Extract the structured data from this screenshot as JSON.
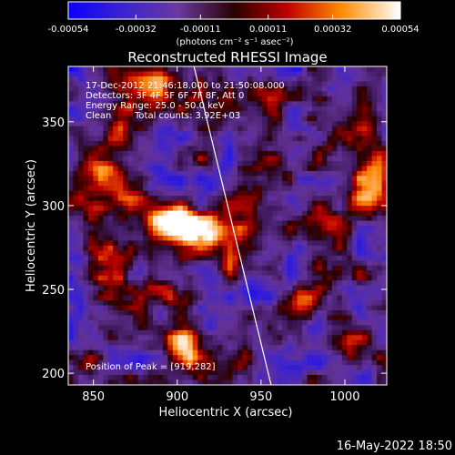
{
  "chart_data": {
    "type": "heatmap",
    "title": "Reconstructed RHESSI Image",
    "xlabel": "Heliocentric X (arcsec)",
    "ylabel": "Heliocentric Y (arcsec)",
    "xlim": [
      835,
      1025
    ],
    "ylim": [
      193,
      383
    ],
    "x_ticks": [
      "850",
      "900",
      "950",
      "1000"
    ],
    "y_ticks": [
      "200",
      "250",
      "300",
      "350"
    ],
    "x_tick_values": [
      850,
      900,
      950,
      1000
    ],
    "y_tick_values": [
      200,
      250,
      300,
      350
    ],
    "colorbar": {
      "ticks": [
        "-0.00054",
        "-0.00032",
        "-0.00011",
        "0.00011",
        "0.00032",
        "0.00054"
      ],
      "tick_values": [
        -0.00054,
        -0.00032,
        -0.00011,
        0.00011,
        0.00032,
        0.00054
      ],
      "range": [
        -0.00054,
        0.00054
      ],
      "unit_label": "(photons cm⁻² s⁻¹ asec⁻²)"
    },
    "annotations": {
      "time_range": "17-Dec-2012 21:46:18.000 to 21:50:08.000",
      "detectors": "Detectors: 3F 4F 5F 6F 7F 8F, Att 0",
      "energy": "Energy Range: 25.0 - 50.0 keV",
      "algorithm": "Clean",
      "total_counts": "Total counts: 3.92E+03",
      "peak": "Position of Peak = [919,282]"
    },
    "limb_line": {
      "x": [
        910,
        956
      ],
      "y": [
        383,
        193
      ]
    },
    "peak_position": [
      919,
      282
    ],
    "sources": [
      {
        "x": 918,
        "y": 285,
        "amp": 1.0,
        "sx": 14,
        "sy": 8
      },
      {
        "x": 895,
        "y": 290,
        "amp": 0.85,
        "sx": 9,
        "sy": 7
      },
      {
        "x": 855,
        "y": 320,
        "amp": 0.75,
        "sx": 12,
        "sy": 11
      },
      {
        "x": 875,
        "y": 302,
        "amp": 0.6,
        "sx": 8,
        "sy": 6
      },
      {
        "x": 885,
        "y": 370,
        "amp": 0.55,
        "sx": 10,
        "sy": 8
      },
      {
        "x": 860,
        "y": 262,
        "amp": 0.6,
        "sx": 7,
        "sy": 13
      },
      {
        "x": 905,
        "y": 218,
        "amp": 0.7,
        "sx": 8,
        "sy": 9
      },
      {
        "x": 906,
        "y": 245,
        "amp": 0.5,
        "sx": 8,
        "sy": 5
      },
      {
        "x": 932,
        "y": 268,
        "amp": 0.55,
        "sx": 5,
        "sy": 10
      },
      {
        "x": 940,
        "y": 215,
        "amp": 0.5,
        "sx": 4,
        "sy": 10
      },
      {
        "x": 1012,
        "y": 312,
        "amp": 0.65,
        "sx": 8,
        "sy": 8
      },
      {
        "x": 990,
        "y": 288,
        "amp": 0.55,
        "sx": 10,
        "sy": 6
      },
      {
        "x": 1017,
        "y": 335,
        "amp": 0.45,
        "sx": 6,
        "sy": 15
      },
      {
        "x": 965,
        "y": 318,
        "amp": 0.45,
        "sx": 6,
        "sy": 6
      },
      {
        "x": 995,
        "y": 262,
        "amp": 0.5,
        "sx": 7,
        "sy": 5
      },
      {
        "x": 973,
        "y": 240,
        "amp": 0.55,
        "sx": 8,
        "sy": 7
      },
      {
        "x": 1003,
        "y": 213,
        "amp": 0.45,
        "sx": 11,
        "sy": 7
      },
      {
        "x": 960,
        "y": 355,
        "amp": 0.3,
        "sx": 6,
        "sy": 5
      },
      {
        "x": 868,
        "y": 350,
        "amp": 0.35,
        "sx": 6,
        "sy": 6
      },
      {
        "x": 843,
        "y": 208,
        "amp": 0.3,
        "sx": 6,
        "sy": 6
      }
    ]
  },
  "footer": {
    "timestamp": "16-May-2022 18:50"
  }
}
